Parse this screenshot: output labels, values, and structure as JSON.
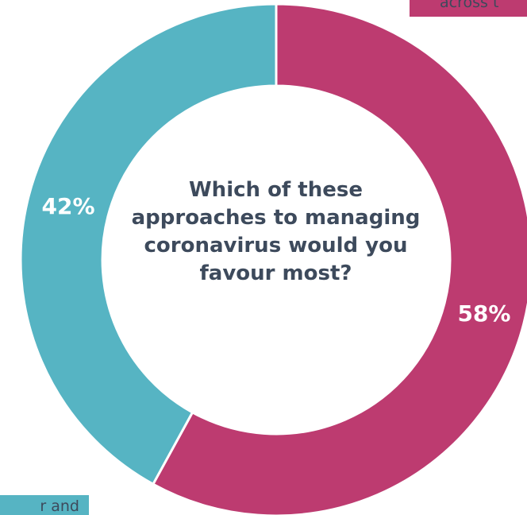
{
  "chart_data": {
    "type": "pie",
    "center_text": "Which of these approaches to managing coronavirus would you favour most?",
    "categories": [
      "",
      ""
    ],
    "values": [
      58,
      42
    ],
    "data_labels": [
      "58%",
      "42%"
    ],
    "colors": [
      "#bd3b70",
      "#56b4c3"
    ],
    "inner_radius_fraction": 0.68,
    "callouts": {
      "top_right": "across t",
      "bottom_left": "r and"
    }
  }
}
